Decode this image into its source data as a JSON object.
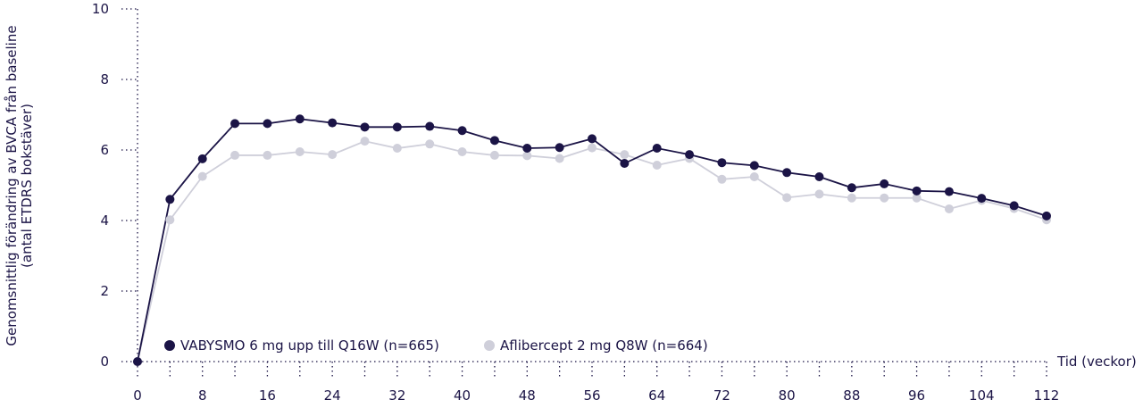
{
  "chart_data": {
    "type": "line",
    "ylabel_lines": [
      "Genomsnittlig förändring av BVCA från baseline",
      "(antal ETDRS bokstäver)"
    ],
    "xlabel": "Tid (veckor)",
    "xlim": [
      0,
      112
    ],
    "ylim": [
      0,
      10
    ],
    "x_ticks": [
      0,
      8,
      16,
      24,
      32,
      40,
      48,
      56,
      64,
      72,
      80,
      88,
      96,
      104,
      112
    ],
    "x_minor_ticks": [
      4,
      12,
      20,
      28,
      36,
      44,
      52,
      60,
      68,
      76,
      84,
      92,
      100,
      108
    ],
    "y_ticks": [
      0,
      2,
      4,
      6,
      8,
      10
    ],
    "grid": false,
    "legend_position": "bottom-left",
    "series": [
      {
        "name": "VABYSMO 6 mg upp till Q16W (n=665)",
        "color": "#1b1446",
        "x": [
          0,
          4,
          8,
          12,
          16,
          20,
          24,
          28,
          32,
          36,
          40,
          44,
          48,
          52,
          56,
          60,
          64,
          68,
          72,
          76,
          80,
          84,
          88,
          92,
          96,
          100,
          104,
          108,
          112
        ],
        "values": [
          0,
          4.6,
          5.75,
          6.75,
          6.75,
          6.88,
          6.77,
          6.65,
          6.65,
          6.67,
          6.55,
          6.27,
          6.05,
          6.07,
          6.32,
          5.62,
          6.05,
          5.87,
          5.64,
          5.56,
          5.36,
          5.24,
          4.93,
          5.04,
          4.84,
          4.82,
          4.63,
          4.42,
          4.13
        ]
      },
      {
        "name": "Aflibercept 2 mg Q8W (n=664)",
        "color": "#cfcfda",
        "x": [
          0,
          4,
          8,
          12,
          16,
          20,
          24,
          28,
          32,
          36,
          40,
          44,
          48,
          52,
          56,
          60,
          64,
          68,
          72,
          76,
          80,
          84,
          88,
          92,
          96,
          100,
          104,
          108,
          112
        ],
        "values": [
          0,
          4.02,
          5.25,
          5.85,
          5.85,
          5.95,
          5.87,
          6.25,
          6.05,
          6.17,
          5.95,
          5.85,
          5.84,
          5.76,
          6.06,
          5.87,
          5.57,
          5.76,
          5.17,
          5.24,
          4.65,
          4.75,
          4.64,
          4.64,
          4.64,
          4.33,
          4.57,
          4.34,
          4.02
        ]
      }
    ]
  }
}
